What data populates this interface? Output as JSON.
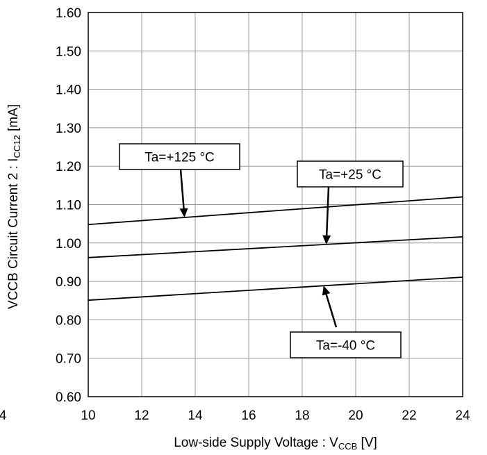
{
  "chart_data": {
    "type": "line",
    "xlabel": {
      "text": "Low-side Supply Voltage : V",
      "sub": "CCB",
      "unit": " [V]"
    },
    "ylabel": {
      "text": "VCCB Circuit Current 2 : I",
      "sub": "CC12",
      "unit": " [mA]"
    },
    "xlim": [
      10,
      24
    ],
    "ylim": [
      0.6,
      1.6
    ],
    "x_ticks": [
      "10",
      "12",
      "14",
      "16",
      "18",
      "20",
      "22",
      "24"
    ],
    "y_ticks": [
      "0.60",
      "0.70",
      "0.80",
      "0.90",
      "1.00",
      "1.10",
      "1.20",
      "1.30",
      "1.40",
      "1.50",
      "1.60"
    ],
    "cropped_tick_fragment": "4",
    "grid": true,
    "legend": "none",
    "series": [
      {
        "name": "Ta=+125 °C",
        "x": [
          10,
          24
        ],
        "y": [
          1.048,
          1.12
        ]
      },
      {
        "name": "Ta=+25 °C",
        "x": [
          10,
          24
        ],
        "y": [
          0.962,
          1.016
        ]
      },
      {
        "name": "Ta=-40 °C",
        "x": [
          10,
          24
        ],
        "y": [
          0.851,
          0.911
        ]
      }
    ],
    "annotations": [
      {
        "text": "Ta=+125 °C",
        "series": 0,
        "arrow_x": 13.6
      },
      {
        "text": "Ta=+25 °C",
        "series": 1,
        "arrow_x": 18.9
      },
      {
        "text": "Ta=-40 °C",
        "series": 2,
        "arrow_x": 18.8
      }
    ],
    "line_color": "#000000",
    "grid_color": "#999999"
  }
}
